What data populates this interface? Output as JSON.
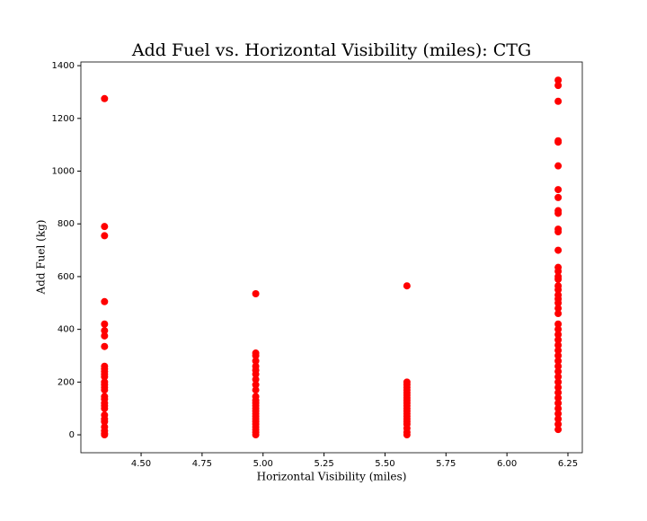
{
  "chart_data": {
    "type": "scatter",
    "title": "Add Fuel vs. Horizontal Visibility (miles): CTG",
    "x_label": "Horizontal Visibility (miles)",
    "y_label": "Add Fuel (kg)",
    "color": "#ff0000",
    "x": [
      4.35,
      4.35,
      4.35,
      4.35,
      4.35,
      4.35,
      4.35,
      4.35,
      4.35,
      4.35,
      4.35,
      4.35,
      4.35,
      4.35,
      4.35,
      4.35,
      4.35,
      4.35,
      4.35,
      4.35,
      4.35,
      4.35,
      4.35,
      4.35,
      4.35,
      4.35,
      4.35,
      4.35,
      4.35,
      4.97,
      4.97,
      4.97,
      4.97,
      4.97,
      4.97,
      4.97,
      4.97,
      4.97,
      4.97,
      4.97,
      4.97,
      4.97,
      4.97,
      4.97,
      4.97,
      4.97,
      4.97,
      4.97,
      4.97,
      4.97,
      4.97,
      4.97,
      4.97,
      4.97,
      5.59,
      5.59,
      5.59,
      5.59,
      5.59,
      5.59,
      5.59,
      5.59,
      5.59,
      5.59,
      5.59,
      5.59,
      5.59,
      5.59,
      5.59,
      5.59,
      5.59,
      5.59,
      5.59,
      5.59,
      5.59,
      6.21,
      6.21,
      6.21,
      6.21,
      6.21,
      6.21,
      6.21,
      6.21,
      6.21,
      6.21,
      6.21,
      6.21,
      6.21,
      6.21,
      6.21,
      6.21,
      6.21,
      6.21,
      6.21,
      6.21,
      6.21,
      6.21,
      6.21,
      6.21,
      6.21,
      6.21,
      6.21,
      6.21,
      6.21,
      6.21,
      6.21,
      6.21,
      6.21,
      6.21,
      6.21,
      6.21,
      6.21,
      6.21,
      6.21,
      6.21,
      6.21,
      6.21,
      6.21,
      6.21,
      6.21
    ],
    "values": [
      1275,
      790,
      755,
      505,
      420,
      395,
      375,
      335,
      260,
      250,
      240,
      230,
      220,
      200,
      190,
      180,
      170,
      145,
      135,
      120,
      110,
      100,
      75,
      60,
      50,
      30,
      15,
      5,
      0,
      535,
      310,
      300,
      280,
      260,
      245,
      230,
      210,
      190,
      170,
      145,
      130,
      120,
      110,
      100,
      90,
      80,
      70,
      60,
      50,
      40,
      30,
      20,
      10,
      0,
      565,
      200,
      190,
      180,
      170,
      160,
      150,
      140,
      130,
      120,
      110,
      100,
      90,
      80,
      70,
      60,
      50,
      40,
      25,
      10,
      0,
      1345,
      1325,
      1265,
      1115,
      1110,
      1020,
      930,
      900,
      850,
      840,
      780,
      770,
      700,
      635,
      620,
      600,
      590,
      565,
      550,
      530,
      515,
      500,
      480,
      460,
      420,
      400,
      380,
      360,
      340,
      320,
      300,
      280,
      260,
      240,
      220,
      200,
      180,
      160,
      140,
      120,
      100,
      80,
      60,
      40,
      20
    ],
    "xlim": [
      4.253,
      6.309
    ],
    "ylim": [
      -68,
      1414
    ],
    "xticks": [
      {
        "value": 4.5,
        "label": "4.50"
      },
      {
        "value": 4.75,
        "label": "4.75"
      },
      {
        "value": 5.0,
        "label": "5.00"
      },
      {
        "value": 5.25,
        "label": "5.25"
      },
      {
        "value": 5.5,
        "label": "5.50"
      },
      {
        "value": 5.75,
        "label": "5.75"
      },
      {
        "value": 6.0,
        "label": "6.00"
      },
      {
        "value": 6.25,
        "label": "6.25"
      }
    ],
    "yticks": [
      0,
      200,
      400,
      600,
      800,
      1000,
      1200,
      1400
    ]
  }
}
